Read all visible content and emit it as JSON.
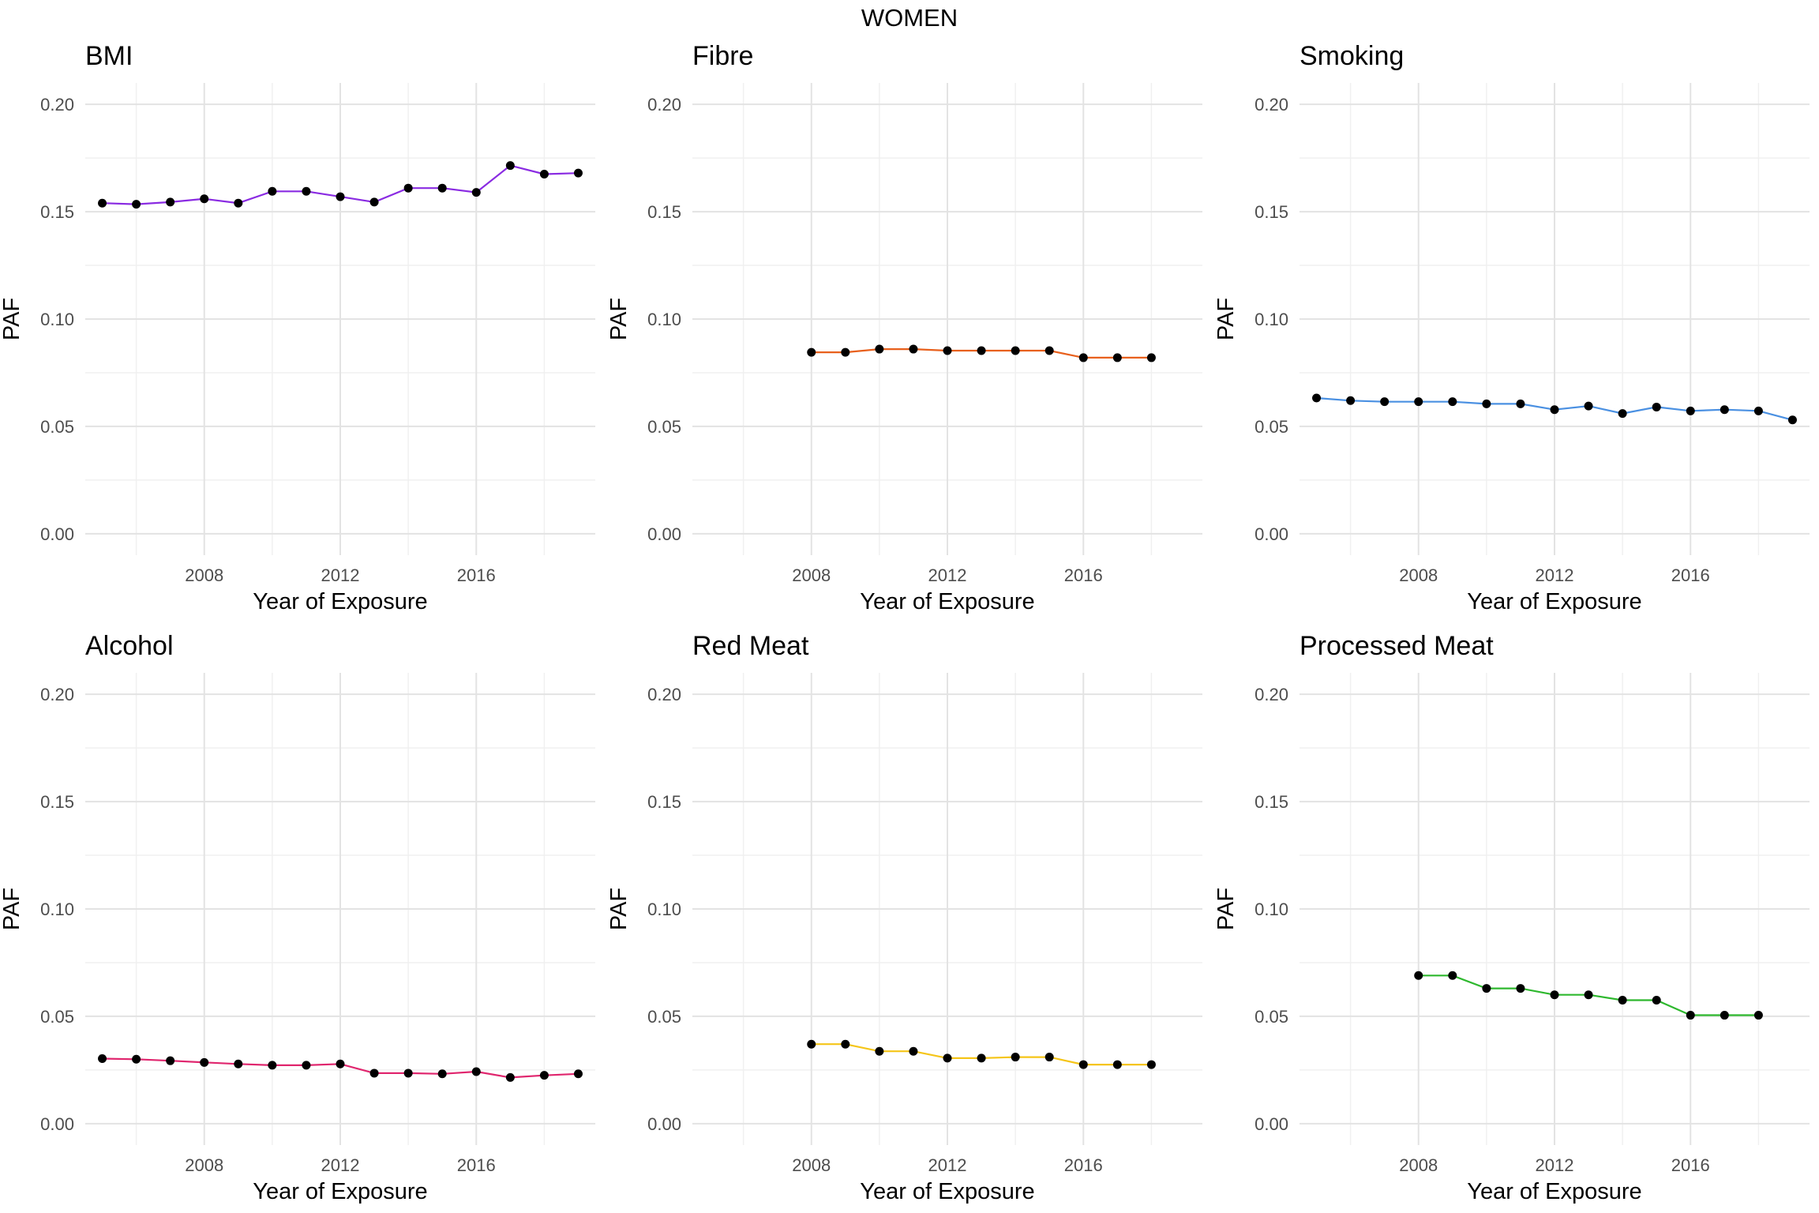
{
  "figure": {
    "title": "WOMEN"
  },
  "chart_data": [
    {
      "type": "line",
      "title": "BMI",
      "xlabel": "Year of Exposure",
      "ylabel": "PAF",
      "color": "#8a2be2",
      "xlim": [
        2004.5,
        2019.5
      ],
      "ylim": [
        -0.01,
        0.21
      ],
      "xticks": [
        2008,
        2012,
        2016
      ],
      "yticks": [
        0.0,
        0.05,
        0.1,
        0.15,
        0.2
      ],
      "ytick_labels": [
        "0.00",
        "0.05",
        "0.10",
        "0.15",
        "0.20"
      ],
      "x": [
        2005,
        2006,
        2007,
        2008,
        2009,
        2010,
        2011,
        2012,
        2013,
        2014,
        2015,
        2016,
        2017,
        2018,
        2019
      ],
      "y": [
        0.154,
        0.1535,
        0.1545,
        0.156,
        0.154,
        0.1595,
        0.1595,
        0.157,
        0.1545,
        0.161,
        0.161,
        0.159,
        0.1715,
        0.1675,
        0.168
      ]
    },
    {
      "type": "line",
      "title": "Fibre",
      "xlabel": "Year of Exposure",
      "ylabel": "PAF",
      "color": "#e8601c",
      "xlim": [
        2004.5,
        2019.5
      ],
      "ylim": [
        -0.01,
        0.21
      ],
      "xticks": [
        2008,
        2012,
        2016
      ],
      "yticks": [
        0.0,
        0.05,
        0.1,
        0.15,
        0.2
      ],
      "ytick_labels": [
        "0.00",
        "0.05",
        "0.10",
        "0.15",
        "0.20"
      ],
      "x": [
        2008,
        2009,
        2010,
        2011,
        2012,
        2013,
        2014,
        2015,
        2016,
        2017,
        2018
      ],
      "y": [
        0.0845,
        0.0845,
        0.086,
        0.086,
        0.0853,
        0.0853,
        0.0853,
        0.0853,
        0.082,
        0.082,
        0.082
      ]
    },
    {
      "type": "line",
      "title": "Smoking",
      "xlabel": "Year of Exposure",
      "ylabel": "PAF",
      "color": "#4a90e2",
      "xlim": [
        2004.5,
        2019.5
      ],
      "ylim": [
        -0.01,
        0.21
      ],
      "xticks": [
        2008,
        2012,
        2016
      ],
      "yticks": [
        0.0,
        0.05,
        0.1,
        0.15,
        0.2
      ],
      "ytick_labels": [
        "0.00",
        "0.05",
        "0.10",
        "0.15",
        "0.20"
      ],
      "x": [
        2005,
        2006,
        2007,
        2008,
        2009,
        2010,
        2011,
        2012,
        2013,
        2014,
        2015,
        2016,
        2017,
        2018,
        2019
      ],
      "y": [
        0.0632,
        0.062,
        0.0615,
        0.0615,
        0.0615,
        0.0605,
        0.0605,
        0.0578,
        0.0595,
        0.056,
        0.059,
        0.0572,
        0.0578,
        0.0572,
        0.053
      ]
    },
    {
      "type": "line",
      "title": "Alcohol",
      "xlabel": "Year of Exposure",
      "ylabel": "PAF",
      "color": "#e0266e",
      "xlim": [
        2004.5,
        2019.5
      ],
      "ylim": [
        -0.01,
        0.21
      ],
      "xticks": [
        2008,
        2012,
        2016
      ],
      "yticks": [
        0.0,
        0.05,
        0.1,
        0.15,
        0.2
      ],
      "ytick_labels": [
        "0.00",
        "0.05",
        "0.10",
        "0.15",
        "0.20"
      ],
      "x": [
        2005,
        2006,
        2007,
        2008,
        2009,
        2010,
        2011,
        2012,
        2013,
        2014,
        2015,
        2016,
        2017,
        2018,
        2019
      ],
      "y": [
        0.0303,
        0.03,
        0.0293,
        0.0285,
        0.0278,
        0.0272,
        0.0272,
        0.0278,
        0.0235,
        0.0235,
        0.0232,
        0.0242,
        0.0215,
        0.0225,
        0.0232
      ]
    },
    {
      "type": "line",
      "title": "Red Meat",
      "xlabel": "Year of Exposure",
      "ylabel": "PAF",
      "color": "#f5c518",
      "xlim": [
        2004.5,
        2019.5
      ],
      "ylim": [
        -0.01,
        0.21
      ],
      "xticks": [
        2008,
        2012,
        2016
      ],
      "yticks": [
        0.0,
        0.05,
        0.1,
        0.15,
        0.2
      ],
      "ytick_labels": [
        "0.00",
        "0.05",
        "0.10",
        "0.15",
        "0.20"
      ],
      "x": [
        2008,
        2009,
        2010,
        2011,
        2012,
        2013,
        2014,
        2015,
        2016,
        2017,
        2018
      ],
      "y": [
        0.037,
        0.037,
        0.0337,
        0.0337,
        0.0305,
        0.0305,
        0.031,
        0.031,
        0.0275,
        0.0275,
        0.0275
      ]
    },
    {
      "type": "line",
      "title": "Processed Meat",
      "xlabel": "Year of Exposure",
      "ylabel": "PAF",
      "color": "#2eb82e",
      "xlim": [
        2004.5,
        2019.5
      ],
      "ylim": [
        -0.01,
        0.21
      ],
      "xticks": [
        2008,
        2012,
        2016
      ],
      "yticks": [
        0.0,
        0.05,
        0.1,
        0.15,
        0.2
      ],
      "ytick_labels": [
        "0.00",
        "0.05",
        "0.10",
        "0.15",
        "0.20"
      ],
      "x": [
        2008,
        2009,
        2010,
        2011,
        2012,
        2013,
        2014,
        2015,
        2016,
        2017,
        2018
      ],
      "y": [
        0.069,
        0.069,
        0.063,
        0.063,
        0.06,
        0.06,
        0.0575,
        0.0575,
        0.0505,
        0.0505,
        0.0505
      ]
    }
  ]
}
